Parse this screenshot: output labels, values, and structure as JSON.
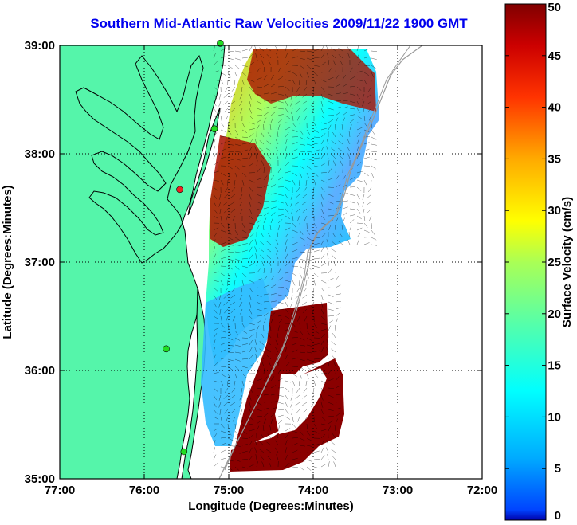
{
  "title": "Southern Mid-Atlantic Raw Velocities 2009/11/22 1900 GMT",
  "map": {
    "x_axis_label": "Longitude (Degrees:Minutes)",
    "y_axis_label": "Latitude (Degrees:Minutes)",
    "x_ticks": [
      "77:00",
      "76:00",
      "75:00",
      "74:00",
      "73:00",
      "72:00"
    ],
    "y_ticks": [
      "39:00",
      "38:00",
      "37:00",
      "36:00",
      "35:00"
    ],
    "lon_range": [
      -77,
      -72
    ],
    "lat_range": [
      35,
      39
    ],
    "grid": "dotted",
    "land_color": "#55f5aa",
    "coast_color": "#000000",
    "isobath_color": "#999999"
  },
  "colorbar": {
    "label": "Surface Velocity (cm/s)",
    "ticks": [
      "50",
      "45",
      "40",
      "35",
      "30",
      "25",
      "20",
      "15",
      "10",
      "5",
      "0"
    ],
    "min": 0,
    "max": 50,
    "colormap": "jet"
  },
  "stations": [
    {
      "lon": -75.1,
      "lat": 39.02,
      "color": "#22dd22"
    },
    {
      "lon": -75.17,
      "lat": 38.23,
      "color": "#22dd22"
    },
    {
      "lon": -75.58,
      "lat": 37.67,
      "color": "#ee2222"
    },
    {
      "lon": -75.74,
      "lat": 36.2,
      "color": "#22dd22"
    },
    {
      "lon": -75.53,
      "lat": 35.25,
      "color": "#22dd22"
    }
  ]
}
